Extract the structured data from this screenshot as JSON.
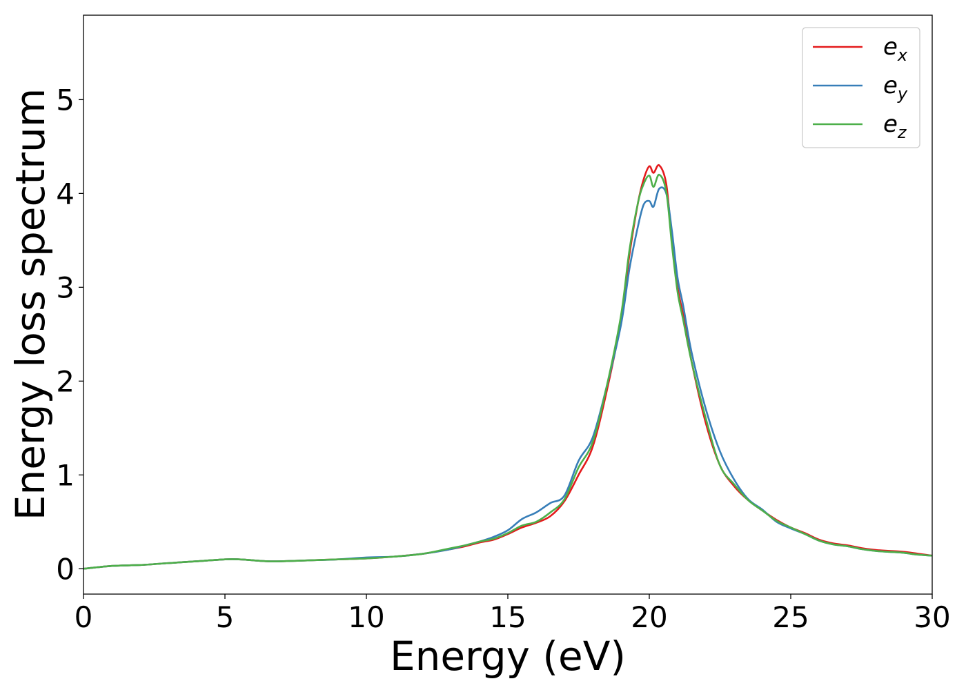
{
  "chart_data": {
    "type": "line",
    "title": "",
    "xlabel": "Energy (eV)",
    "ylabel": "Energy loss spectrum",
    "xlim": [
      0,
      30
    ],
    "ylim": [
      -0.27,
      5.9
    ],
    "xticks": [
      0,
      5,
      10,
      15,
      20,
      25,
      30
    ],
    "yticks": [
      0,
      1,
      2,
      3,
      4,
      5
    ],
    "xtick_labels": [
      "0",
      "5",
      "10",
      "15",
      "20",
      "25",
      "30"
    ],
    "ytick_labels": [
      "0",
      "1",
      "2",
      "3",
      "4",
      "5"
    ],
    "grid": false,
    "legend_position": "top-right",
    "series": [
      {
        "name": "e_x",
        "legend_base": "e",
        "legend_sub": "x",
        "color": "#e41a1c",
        "x": [
          0,
          1,
          2,
          3,
          4,
          5,
          5.5,
          6,
          6.5,
          7,
          8,
          9,
          10,
          11,
          12,
          13,
          13.5,
          14,
          14.5,
          15,
          15.5,
          16,
          16.5,
          17,
          17.5,
          18,
          18.5,
          19,
          19.3,
          19.6,
          19.8,
          20.0,
          20.15,
          20.35,
          20.6,
          20.8,
          21.0,
          21.2,
          21.5,
          22.0,
          22.5,
          23.0,
          23.5,
          24.0,
          24.5,
          25.0,
          25.5,
          26.0,
          26.5,
          27.0,
          27.5,
          28.0,
          28.5,
          29.0,
          29.5,
          30.0
        ],
        "y": [
          0.0,
          0.03,
          0.04,
          0.06,
          0.08,
          0.1,
          0.1,
          0.09,
          0.08,
          0.08,
          0.09,
          0.1,
          0.11,
          0.13,
          0.16,
          0.21,
          0.24,
          0.28,
          0.31,
          0.37,
          0.44,
          0.49,
          0.56,
          0.72,
          1.0,
          1.3,
          1.9,
          2.65,
          3.35,
          3.9,
          4.15,
          4.29,
          4.22,
          4.3,
          4.1,
          3.5,
          3.0,
          2.7,
          2.2,
          1.55,
          1.1,
          0.88,
          0.73,
          0.62,
          0.52,
          0.44,
          0.38,
          0.31,
          0.27,
          0.25,
          0.22,
          0.2,
          0.19,
          0.18,
          0.16,
          0.14
        ]
      },
      {
        "name": "e_y",
        "legend_base": "e",
        "legend_sub": "y",
        "color": "#377eb8",
        "x": [
          0,
          1,
          2,
          3,
          4,
          5,
          5.5,
          6,
          6.5,
          7,
          8,
          9,
          10,
          11,
          12,
          13,
          13.5,
          14,
          14.5,
          15,
          15.5,
          16,
          16.5,
          17,
          17.5,
          18,
          18.5,
          19,
          19.3,
          19.6,
          19.8,
          20.0,
          20.15,
          20.35,
          20.6,
          20.8,
          21.0,
          21.2,
          21.5,
          22.0,
          22.5,
          23.0,
          23.5,
          24.0,
          24.5,
          25.0,
          25.5,
          26.0,
          26.5,
          27.0,
          27.5,
          28.0,
          28.5,
          29.0,
          29.5,
          30.0
        ],
        "y": [
          0.0,
          0.03,
          0.04,
          0.06,
          0.08,
          0.1,
          0.1,
          0.09,
          0.08,
          0.08,
          0.09,
          0.1,
          0.12,
          0.13,
          0.16,
          0.21,
          0.25,
          0.29,
          0.34,
          0.41,
          0.53,
          0.6,
          0.7,
          0.78,
          1.15,
          1.4,
          1.95,
          2.6,
          3.2,
          3.65,
          3.88,
          3.92,
          3.86,
          4.05,
          4.0,
          3.6,
          3.1,
          2.8,
          2.3,
          1.7,
          1.25,
          0.95,
          0.74,
          0.63,
          0.5,
          0.43,
          0.37,
          0.3,
          0.26,
          0.24,
          0.21,
          0.19,
          0.18,
          0.17,
          0.15,
          0.14
        ]
      },
      {
        "name": "e_z",
        "legend_base": "e",
        "legend_sub": "z",
        "color": "#4daf4a",
        "x": [
          0,
          1,
          2,
          3,
          4,
          5,
          5.5,
          6,
          6.5,
          7,
          8,
          9,
          10,
          11,
          12,
          13,
          13.5,
          14,
          14.5,
          15,
          15.5,
          16,
          16.5,
          17,
          17.5,
          18,
          18.5,
          19,
          19.3,
          19.6,
          19.8,
          20.0,
          20.15,
          20.35,
          20.6,
          20.8,
          21.0,
          21.2,
          21.5,
          22.0,
          22.5,
          23.0,
          23.5,
          24.0,
          24.5,
          25.0,
          25.5,
          26.0,
          26.5,
          27.0,
          27.5,
          28.0,
          28.5,
          29.0,
          29.5,
          30.0
        ],
        "y": [
          0.0,
          0.03,
          0.04,
          0.06,
          0.08,
          0.1,
          0.1,
          0.09,
          0.08,
          0.08,
          0.09,
          0.1,
          0.11,
          0.13,
          0.16,
          0.22,
          0.25,
          0.29,
          0.32,
          0.38,
          0.46,
          0.5,
          0.6,
          0.74,
          1.08,
          1.35,
          1.95,
          2.7,
          3.4,
          3.9,
          4.1,
          4.19,
          4.07,
          4.2,
          4.02,
          3.45,
          2.95,
          2.65,
          2.2,
          1.6,
          1.1,
          0.9,
          0.73,
          0.62,
          0.51,
          0.44,
          0.37,
          0.3,
          0.26,
          0.24,
          0.21,
          0.19,
          0.18,
          0.17,
          0.15,
          0.14
        ]
      }
    ]
  }
}
